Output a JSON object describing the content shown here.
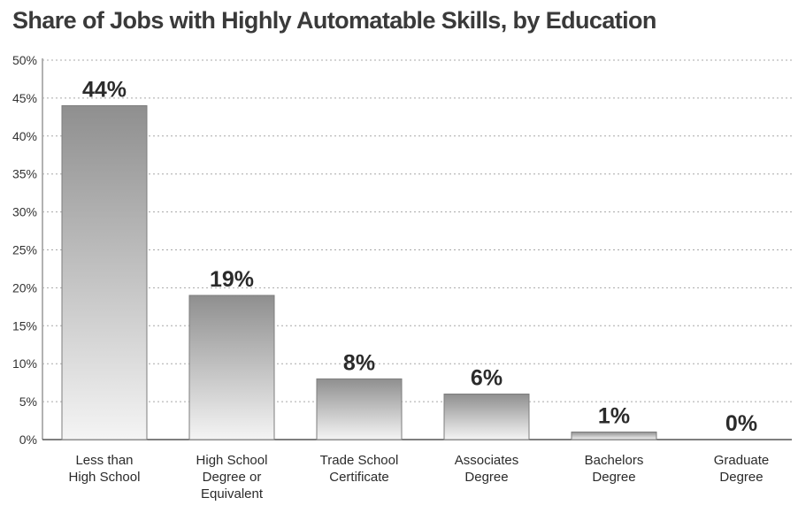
{
  "chart_data": {
    "type": "bar",
    "title": "Share of Jobs with Highly Automatable Skills, by Education",
    "xlabel": "",
    "ylabel": "",
    "categories": [
      [
        "Less than",
        "High School"
      ],
      [
        "High School",
        "Degree or",
        "Equivalent"
      ],
      [
        "Trade School",
        "Certificate"
      ],
      [
        "Associates",
        "Degree"
      ],
      [
        "Bachelors",
        "Degree"
      ],
      [
        "Graduate",
        "Degree"
      ]
    ],
    "values": [
      44,
      19,
      8,
      6,
      1,
      0
    ],
    "value_labels": [
      "44%",
      "19%",
      "8%",
      "6%",
      "1%",
      "0%"
    ],
    "ylim": [
      0,
      50
    ],
    "yticks": [
      0,
      5,
      10,
      15,
      20,
      25,
      30,
      35,
      40,
      45,
      50
    ],
    "ytick_labels": [
      "0%",
      "5%",
      "10%",
      "15%",
      "20%",
      "25%",
      "30%",
      "35%",
      "40%",
      "45%",
      "50%"
    ],
    "grid": true,
    "legend": "none"
  }
}
